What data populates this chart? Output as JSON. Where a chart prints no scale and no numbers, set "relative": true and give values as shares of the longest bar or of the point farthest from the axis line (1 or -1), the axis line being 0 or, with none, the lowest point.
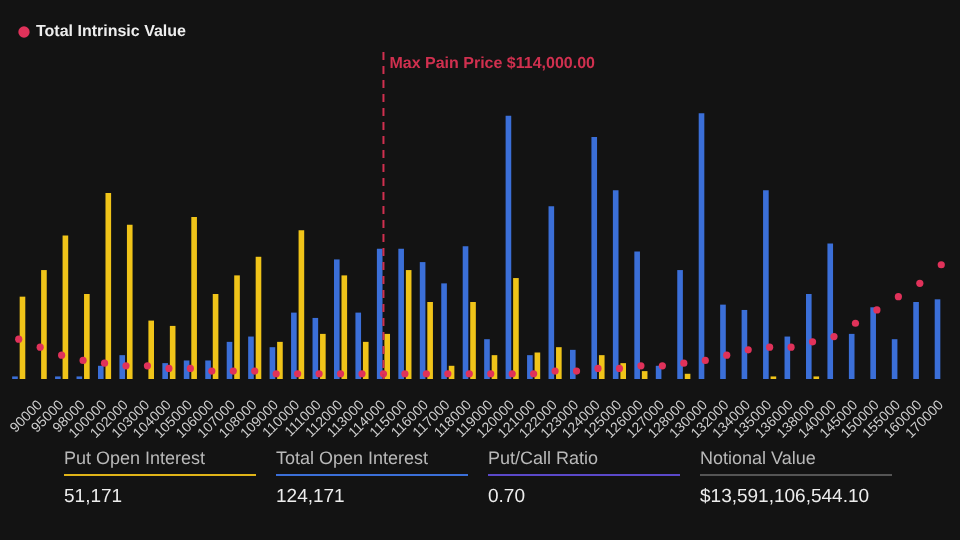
{
  "chart_data": {
    "type": "bar",
    "relative": true,
    "categories": [
      null,
      "90000",
      "95000",
      "98000",
      "100000",
      "102000",
      "103000",
      "104000",
      "105000",
      "106000",
      "107000",
      "108000",
      "109000",
      "110000",
      "111000",
      "112000",
      "113000",
      "114000",
      "115000",
      "116000",
      "117000",
      "118000",
      "119000",
      "120000",
      "121000",
      "122000",
      "123000",
      "124000",
      "125000",
      "126000",
      "127000",
      "128000",
      "130000",
      "132000",
      "134000",
      "135000",
      "136000",
      "138000",
      "140000",
      "145000",
      "150000",
      "155000",
      "160000",
      "170000"
    ],
    "series": [
      {
        "color": "#3b6fd8",
        "values": [
          0.01,
          0,
          0.01,
          0.01,
          0.05,
          0.09,
          0,
          0.06,
          0.07,
          0.07,
          0.14,
          0.16,
          0.12,
          0.25,
          0.23,
          0.45,
          0.25,
          0.49,
          0.49,
          0.44,
          0.36,
          0.5,
          0.15,
          0.99,
          0.09,
          0.65,
          0.11,
          0.91,
          0.71,
          0.48,
          0.05,
          0.41,
          1,
          0.28,
          0.26,
          0.71,
          0.16,
          0.32,
          0.51,
          0.17,
          0.27,
          0.15,
          0.29,
          0.3
        ]
      },
      {
        "color": "#f0c419",
        "values": [
          0.31,
          0.41,
          0.54,
          0.32,
          0.7,
          0.58,
          0.22,
          0.2,
          0.61,
          0.32,
          0.39,
          0.46,
          0.14,
          0.56,
          0.17,
          0.39,
          0.14,
          0.17,
          0.41,
          0.29,
          0.05,
          0.29,
          0.09,
          0.38,
          0.1,
          0.12,
          0,
          0.09,
          0.06,
          0.03,
          0,
          0.02,
          0,
          0,
          0,
          0.01,
          0,
          0.01,
          0,
          0,
          0,
          0,
          0,
          0
        ]
      },
      {
        "name": "Total Intrinsic Value",
        "type": "scatter",
        "color": "#e0325a",
        "values": [
          0.15,
          0.12,
          0.09,
          0.07,
          0.06,
          0.05,
          0.05,
          0.04,
          0.04,
          0.03,
          0.03,
          0.03,
          0.02,
          0.02,
          0.02,
          0.02,
          0.02,
          0.02,
          0.02,
          0.02,
          0.02,
          0.02,
          0.02,
          0.02,
          0.02,
          0.03,
          0.03,
          0.04,
          0.04,
          0.05,
          0.05,
          0.06,
          0.07,
          0.09,
          0.11,
          0.12,
          0.12,
          0.14,
          0.16,
          0.21,
          0.26,
          0.31,
          0.36,
          0.43
        ]
      }
    ],
    "marker": "circle",
    "legend": "top left",
    "ref_lines": [
      {
        "axis": "x",
        "value": "114000",
        "label": "Max Pain Price $114,000.00",
        "color": "#d0304f",
        "line_style": "dashed"
      }
    ],
    "annotations": [
      "Put Open Interest",
      "51,171",
      "Total Open Interest",
      "124,171",
      "Put/Call Ratio",
      "0.70",
      "Notional Value",
      "$13,591,106,544.10"
    ]
  }
}
